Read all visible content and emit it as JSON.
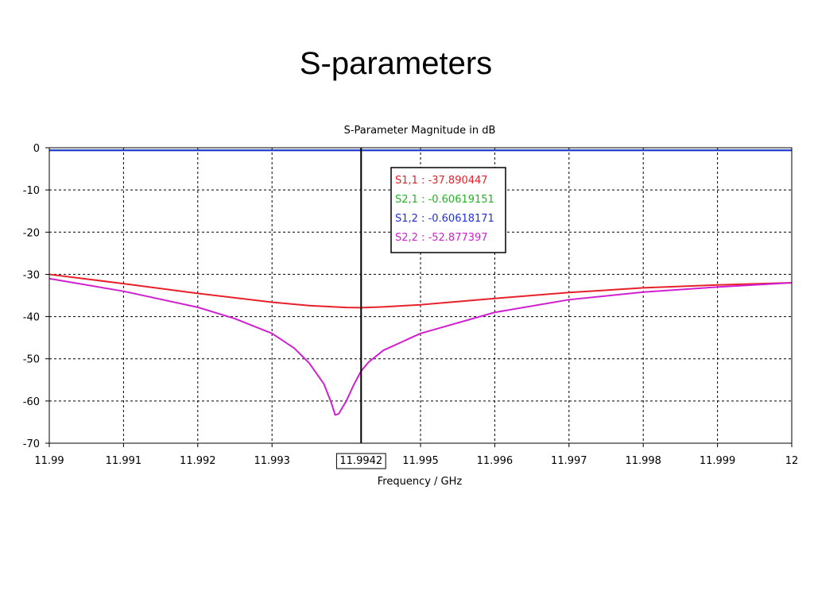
{
  "slide": {
    "title": "S-parameters"
  },
  "chart_data": {
    "type": "line",
    "title": "S-Parameter Magnitude in dB",
    "xlabel": "Frequency / GHz",
    "ylabel": "",
    "xlim": [
      11.99,
      12.0
    ],
    "ylim": [
      -70,
      0
    ],
    "grid": true,
    "x_ticks": [
      "11.99",
      "11.991",
      "11.992",
      "11.993",
      "11.995",
      "11.996",
      "11.997",
      "11.998",
      "11.999",
      "12"
    ],
    "x_tick_values": [
      11.99,
      11.991,
      11.992,
      11.993,
      11.995,
      11.996,
      11.997,
      11.998,
      11.999,
      12.0
    ],
    "y_ticks": [
      "0",
      "-10",
      "-20",
      "-30",
      "-40",
      "-50",
      "-60",
      "-70"
    ],
    "y_tick_values": [
      0,
      -10,
      -20,
      -30,
      -40,
      -50,
      -60,
      -70
    ],
    "marker": {
      "x": 11.9942,
      "label": "11.9942"
    },
    "marker_readout": [
      {
        "text": "S1,1 : -37.890447",
        "color": "#e8202a"
      },
      {
        "text": "S2,1 : -0.60619151",
        "color": "#22b422"
      },
      {
        "text": "S1,2 : -0.60618171",
        "color": "#2030e0"
      },
      {
        "text": "S2,2 : -52.877397",
        "color": "#d020d0"
      }
    ],
    "series": [
      {
        "color": "#e8202a",
        "x": [
          11.99,
          11.991,
          11.992,
          11.993,
          11.9935,
          11.994,
          11.9942,
          11.9945,
          11.995,
          11.996,
          11.997,
          11.998,
          11.999,
          12.0
        ],
        "y": [
          -30.0,
          -32.2,
          -34.5,
          -36.6,
          -37.4,
          -37.85,
          -37.9,
          -37.7,
          -37.2,
          -35.7,
          -34.3,
          -33.2,
          -32.5,
          -32.0
        ]
      },
      {
        "color": "#22b422",
        "x": [
          11.99,
          11.9942,
          12.0
        ],
        "y": [
          -0.6,
          -0.606,
          -0.6
        ]
      },
      {
        "color": "#2030e0",
        "x": [
          11.99,
          11.9942,
          12.0
        ],
        "y": [
          -0.6,
          -0.606,
          -0.6
        ]
      },
      {
        "color": "#d020d0",
        "x": [
          11.99,
          11.991,
          11.992,
          11.9925,
          11.993,
          11.9933,
          11.9935,
          11.9937,
          11.9938,
          11.99385,
          11.9939,
          11.994,
          11.9941,
          11.9942,
          11.9943,
          11.9945,
          11.995,
          11.996,
          11.997,
          11.998,
          11.999,
          12.0
        ],
        "y": [
          -31.0,
          -34.0,
          -37.8,
          -40.5,
          -44.0,
          -47.5,
          -51.0,
          -56.0,
          -60.5,
          -63.3,
          -63.0,
          -60.0,
          -56.2,
          -52.9,
          -50.8,
          -48.0,
          -44.0,
          -39.0,
          -36.0,
          -34.2,
          -33.0,
          -32.0
        ]
      }
    ]
  }
}
